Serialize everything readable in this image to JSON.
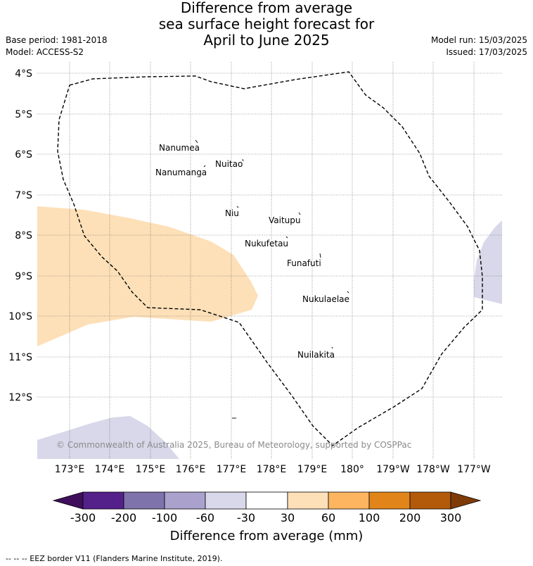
{
  "title": {
    "line1": "Difference from average",
    "line2": "sea surface height forecast for",
    "line3": "April to June 2025"
  },
  "meta": {
    "base_period": "Base period: 1981-2018",
    "model": "Model: ACCESS-S2",
    "model_run": "Model run: 15/03/2025",
    "issued": "Issued: 17/03/2025"
  },
  "map": {
    "lat_labels": [
      "4°S",
      "5°S",
      "6°S",
      "7°S",
      "8°S",
      "9°S",
      "10°S",
      "11°S",
      "12°S"
    ],
    "lon_labels": [
      "173°E",
      "174°E",
      "175°E",
      "176°E",
      "177°E",
      "178°E",
      "179°E",
      "180°",
      "179°W",
      "178°W",
      "177°W"
    ],
    "islands": [
      "Nanumea",
      "Nuitao",
      "Nanumanga",
      "Niu",
      "Vaitupu",
      "Nukufetau",
      "Funafuti",
      "Nukulaelae",
      "Nuilakita"
    ],
    "copyright": "© Commonwealth of Australia 2025, Bureau of Meteorology, supported by COSPPac",
    "anomaly_regions": [
      {
        "category": "30 to 60",
        "color": "#fde0b8"
      },
      {
        "category": "-60 to -30",
        "color": "#d8d8ea"
      }
    ]
  },
  "colorbar": {
    "ticks": [
      "-300",
      "-200",
      "-100",
      "-60",
      "-30",
      "30",
      "60",
      "100",
      "200",
      "300"
    ],
    "colors": [
      "#3f0f5c",
      "#54208a",
      "#7f73ab",
      "#aaa2cd",
      "#d8d8ea",
      "#ffffff",
      "#fde0b8",
      "#fdb55f",
      "#e1851a",
      "#b3590a",
      "#7f3b07"
    ],
    "title": "Difference from average (mm)"
  },
  "footer": "--  --  -- EEZ border V11 (Flanders Marine Institute, 2019)."
}
